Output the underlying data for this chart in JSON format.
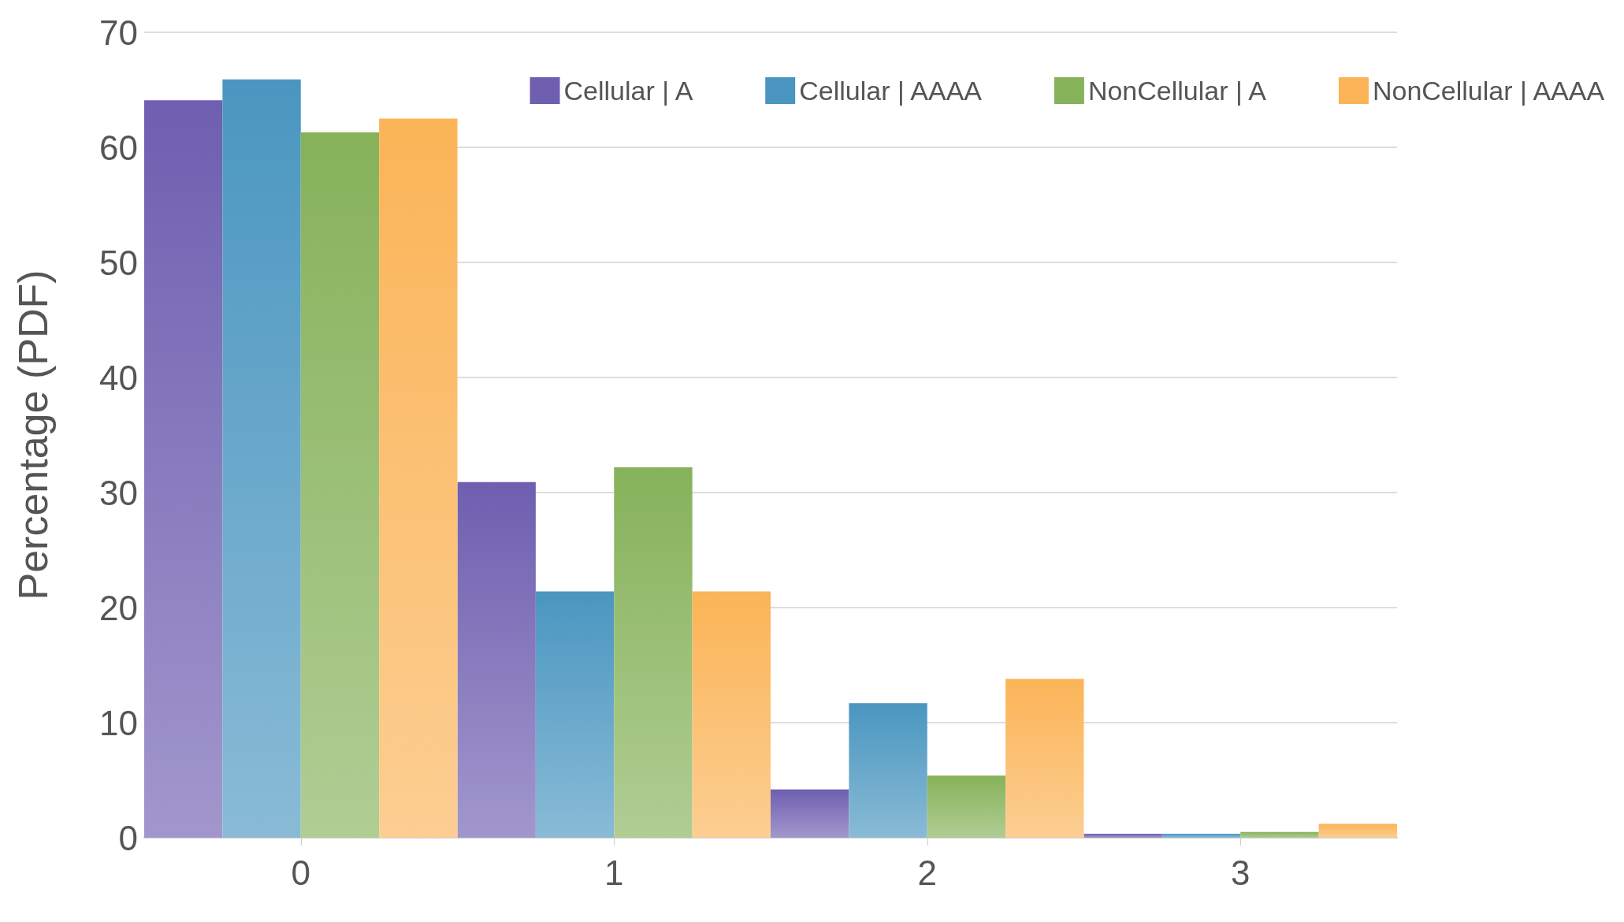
{
  "chart_data": {
    "type": "bar",
    "ylabel": "Percentage (PDF)",
    "categories": [
      "0",
      "1",
      "2",
      "3"
    ],
    "series": [
      {
        "name": "Cellular | A",
        "color": "#6e5fb0",
        "values": [
          64.1,
          30.9,
          4.2,
          0.35
        ]
      },
      {
        "name": "Cellular | AAAA",
        "color": "#4a96c0",
        "values": [
          65.9,
          21.4,
          11.7,
          0.35
        ]
      },
      {
        "name": "NonCellular | A",
        "color": "#86b25a",
        "values": [
          61.3,
          32.2,
          5.4,
          0.5
        ]
      },
      {
        "name": "NonCellular | AAAA",
        "color": "#fbb457",
        "values": [
          62.5,
          21.4,
          13.8,
          1.2
        ]
      }
    ],
    "ylim": [
      0,
      70
    ],
    "yticks": [
      0,
      10,
      20,
      30,
      40,
      50,
      60,
      70
    ],
    "grid": "y",
    "legend": "top right"
  }
}
